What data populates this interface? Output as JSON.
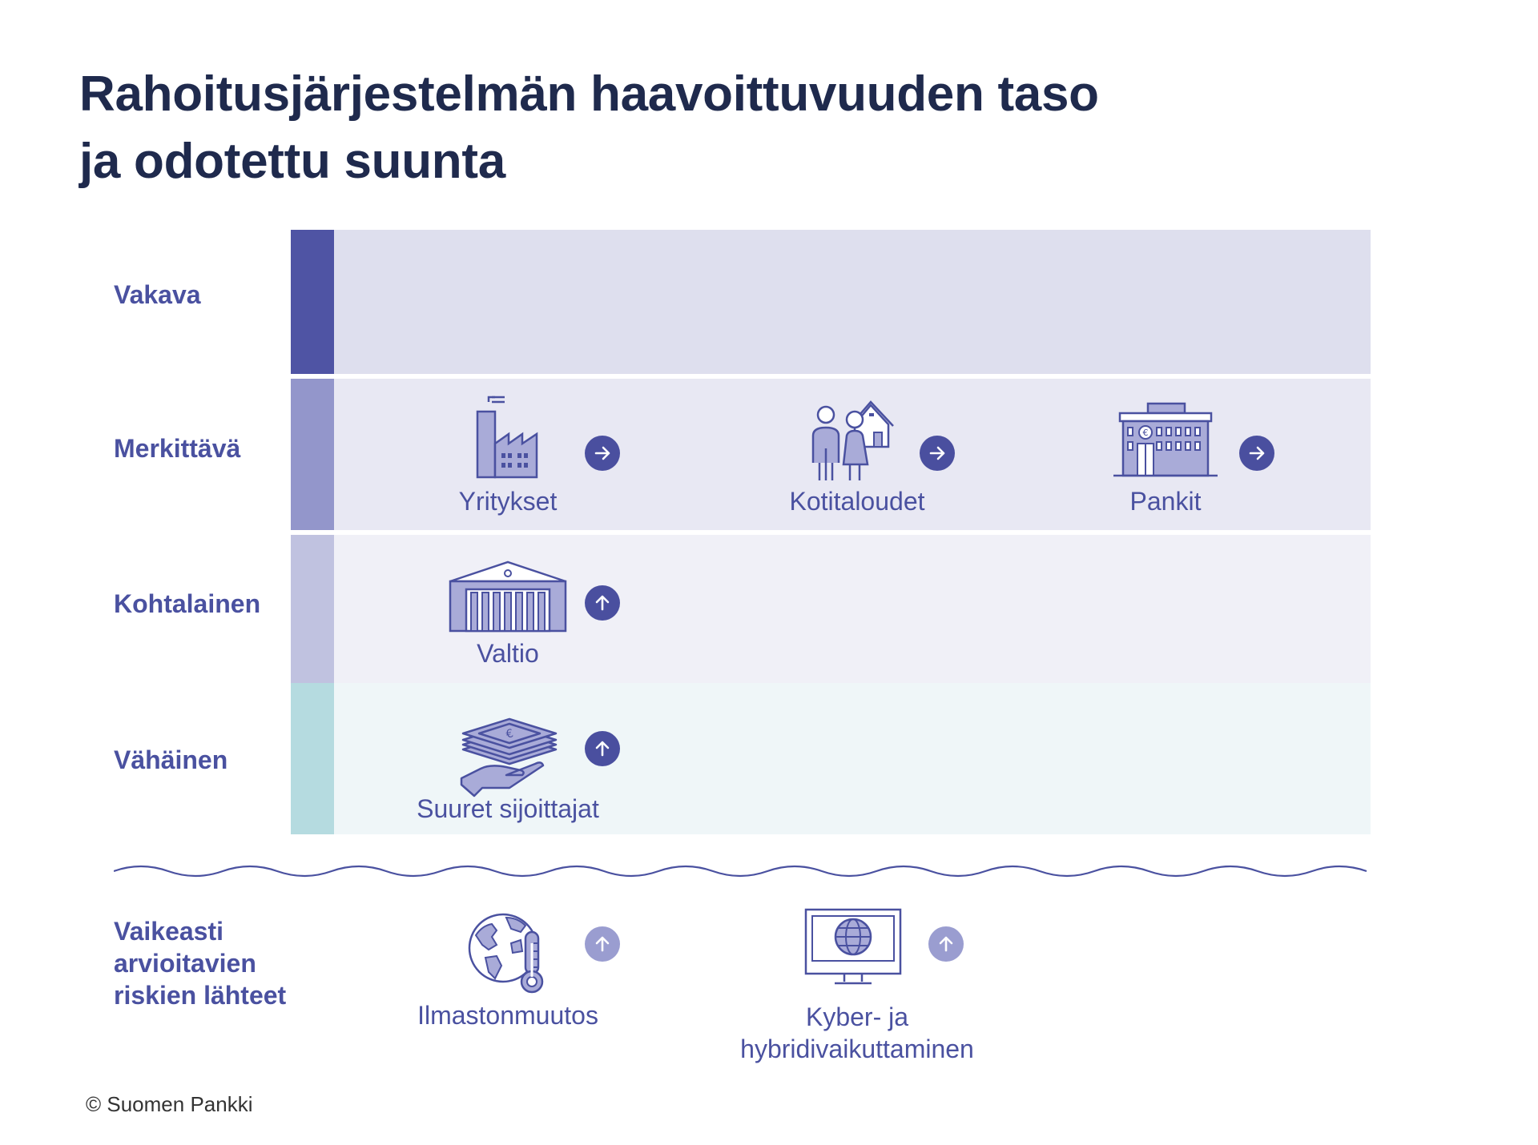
{
  "title": {
    "line1": "Rahoitusjärjestelmän haavoittuvuuden taso",
    "line2": "ja odotettu suunta"
  },
  "levels": [
    {
      "label": "Vakava",
      "stripe_color": "#4f54a4",
      "fill_color": "#dedfee"
    },
    {
      "label": "Merkittävä",
      "stripe_color": "#9396cb",
      "fill_color": "#e8e8f3"
    },
    {
      "label": "Kohtalainen",
      "stripe_color": "#c0c2e0",
      "fill_color": "#f0f0f7"
    },
    {
      "label": "Vähäinen",
      "stripe_color": "#b5dbe0",
      "fill_color": "#eff6f8"
    }
  ],
  "items": {
    "yritykset": {
      "label": "Yritykset",
      "level": "Merkittävä",
      "direction": "right"
    },
    "kotitaloudet": {
      "label": "Kotitaloudet",
      "level": "Merkittävä",
      "direction": "right"
    },
    "pankit": {
      "label": "Pankit",
      "level": "Merkittävä",
      "direction": "right"
    },
    "valtio": {
      "label": "Valtio",
      "level": "Kohtalainen",
      "direction": "up"
    },
    "suuret_sijoittajat": {
      "label": "Suuret sijoittajat",
      "level": "Vähäinen",
      "direction": "up"
    }
  },
  "risk_sources": {
    "heading": [
      "Vaikeasti",
      "arvioitavien",
      "riskien lähteet"
    ],
    "ilmastonmuutos": {
      "label": "Ilmastonmuutos",
      "direction": "up"
    },
    "kyber": {
      "label_line1": "Kyber- ja",
      "label_line2": "hybridivaikuttaminen",
      "direction": "up"
    }
  },
  "copyright": "© Suomen Pankki",
  "colors": {
    "title": "#1f2a4d",
    "accent": "#4a51a0",
    "arrow_dark": "#4a4f9f",
    "arrow_light": "#9a9dd0",
    "icon_fill": "#a9abd8"
  },
  "icons": [
    "factory-icon",
    "family-house-icon",
    "bank-icon",
    "government-building-icon",
    "money-hand-icon",
    "globe-thermometer-icon",
    "monitor-globe-icon"
  ]
}
